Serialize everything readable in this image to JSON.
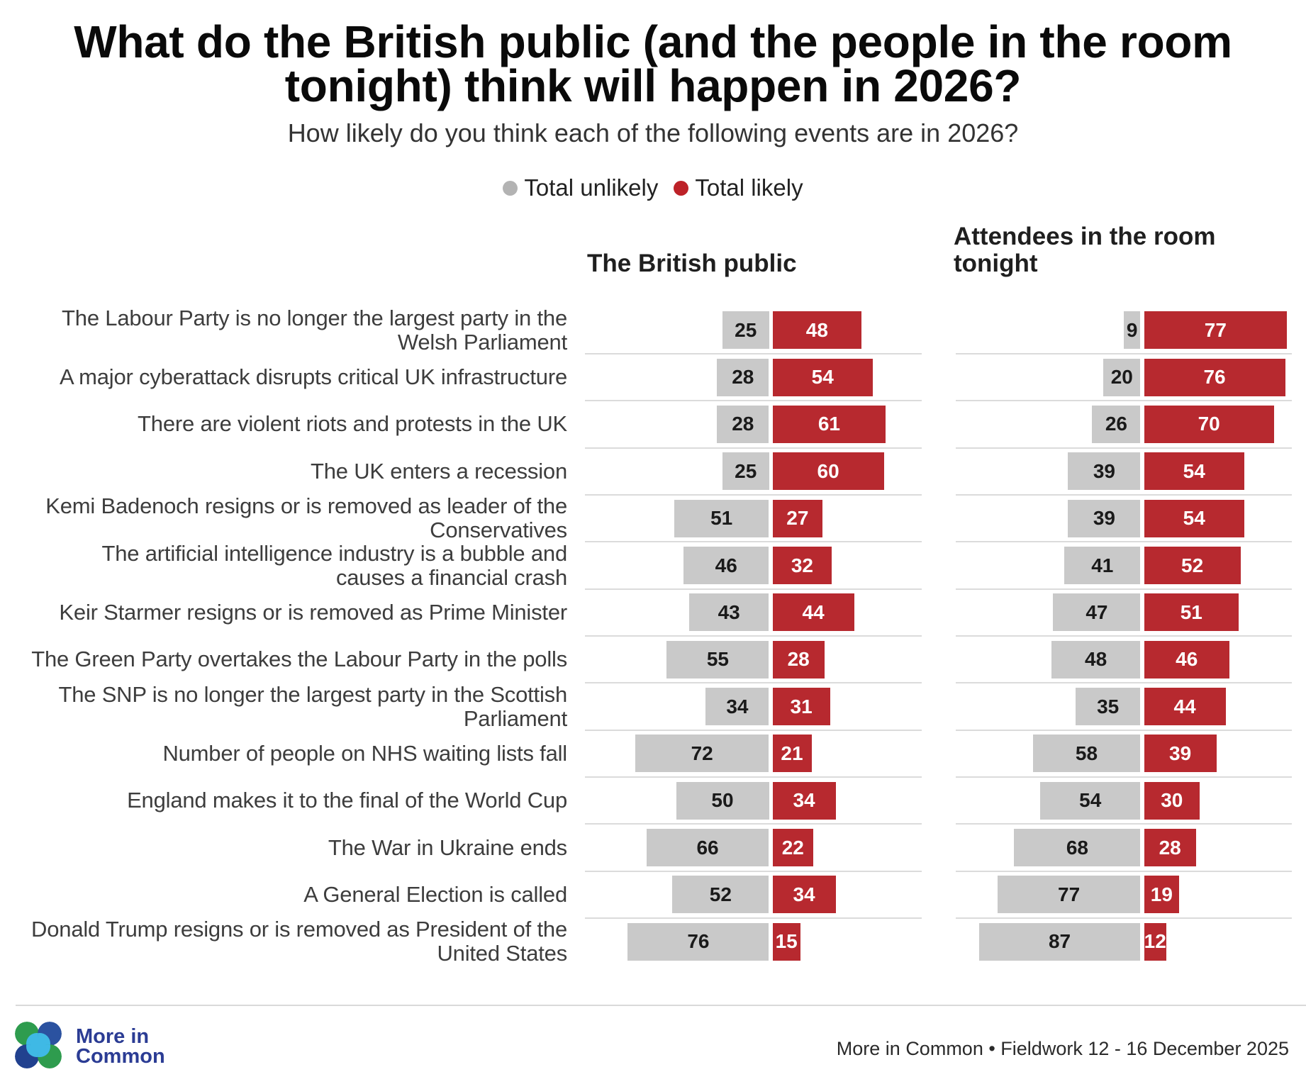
{
  "header": {
    "title": "What do the British public (and the people in the room\ntonight) think will happen in 2026?",
    "subtitle": "How likely do you think each of the following events are in 2026?"
  },
  "legend": [
    {
      "label": "Total unlikely",
      "color": "#b3b3b3"
    },
    {
      "label": "Total likely",
      "color": "#bd2228"
    }
  ],
  "columns": [
    {
      "title": "The British public"
    },
    {
      "title": "Attendees in the room\ntonight"
    }
  ],
  "chart_data": {
    "type": "bar",
    "variant": "horizontal-diverging",
    "unit": "percent",
    "categories": [
      "The Labour Party is no longer the largest party in the\nWelsh Parliament",
      "A major cyberattack disrupts critical UK infrastructure",
      "There are violent riots and protests in the UK",
      "The UK enters a recession",
      "Kemi Badenoch resigns or is removed as leader of the\nConservatives",
      "The artificial intelligence industry is a bubble and\ncauses a financial crash",
      "Keir Starmer resigns or is removed as Prime Minister",
      "The Green Party overtakes the Labour Party in the polls",
      "The SNP is no longer the largest party in the Scottish\nParliament",
      "Number of people on NHS waiting lists fall",
      "England makes it to the final of the World Cup",
      "The War in Ukraine ends",
      "A General Election is called",
      "Donald Trump resigns or is removed as President of the\nUnited States"
    ],
    "series": [
      {
        "name": "The British public — Total unlikely",
        "color": "#c9c9c9",
        "values": [
          25,
          28,
          28,
          25,
          51,
          46,
          43,
          55,
          34,
          72,
          50,
          66,
          52,
          76
        ]
      },
      {
        "name": "The British public — Total likely",
        "color": "#b7292f",
        "values": [
          48,
          54,
          61,
          60,
          27,
          32,
          44,
          28,
          31,
          21,
          34,
          22,
          34,
          15
        ]
      },
      {
        "name": "Attendees in the room tonight — Total unlikely",
        "color": "#c9c9c9",
        "values": [
          9,
          20,
          26,
          39,
          39,
          41,
          47,
          48,
          35,
          58,
          54,
          68,
          77,
          87
        ]
      },
      {
        "name": "Attendees in the room tonight — Total likely",
        "color": "#b7292f",
        "values": [
          77,
          76,
          70,
          54,
          54,
          52,
          51,
          46,
          44,
          39,
          30,
          28,
          19,
          12
        ]
      }
    ]
  },
  "footer": {
    "brand": "More in\nCommon",
    "source": "More in Common • Fieldwork 12 - 16 December 2025"
  }
}
